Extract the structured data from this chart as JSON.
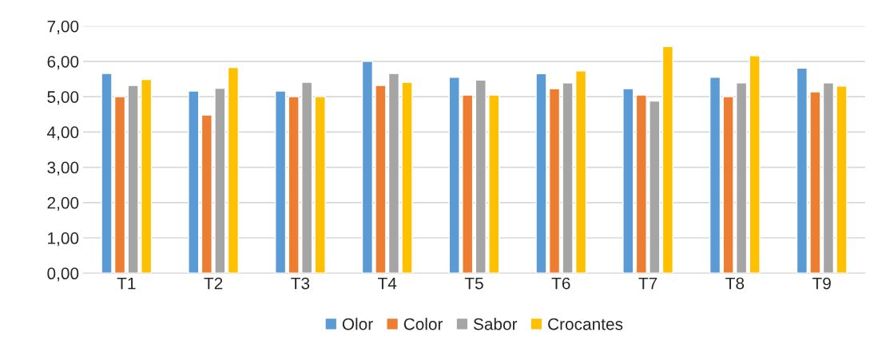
{
  "chart_data": {
    "type": "bar",
    "categories": [
      "T1",
      "T2",
      "T3",
      "T4",
      "T5",
      "T6",
      "T7",
      "T8",
      "T9"
    ],
    "series": [
      {
        "name": "Olor",
        "color": "#5b9bd5",
        "values": [
          5.66,
          5.16,
          5.16,
          6.0,
          5.55,
          5.65,
          5.23,
          5.55,
          5.81
        ]
      },
      {
        "name": "Color",
        "color": "#ed7d31",
        "values": [
          5.0,
          4.48,
          5.0,
          5.32,
          5.05,
          5.23,
          5.05,
          5.0,
          5.14
        ]
      },
      {
        "name": "Sabor",
        "color": "#a5a5a5",
        "values": [
          5.32,
          5.24,
          5.41,
          5.66,
          5.47,
          5.39,
          4.88,
          5.39,
          5.39
        ]
      },
      {
        "name": "Crocantes",
        "color": "#ffc000",
        "values": [
          5.49,
          5.83,
          5.0,
          5.41,
          5.05,
          5.73,
          6.42,
          6.16,
          5.3
        ]
      }
    ],
    "ylim": [
      0,
      7
    ],
    "yticks": [
      {
        "value": 0,
        "label": "0,00"
      },
      {
        "value": 1,
        "label": "1,00"
      },
      {
        "value": 2,
        "label": "2,00"
      },
      {
        "value": 3,
        "label": "3,00"
      },
      {
        "value": 4,
        "label": "4,00"
      },
      {
        "value": 5,
        "label": "5,00"
      },
      {
        "value": 6,
        "label": "6,00"
      },
      {
        "value": 7,
        "label": "7,00"
      }
    ],
    "grid": "y",
    "legend": "bottom"
  }
}
